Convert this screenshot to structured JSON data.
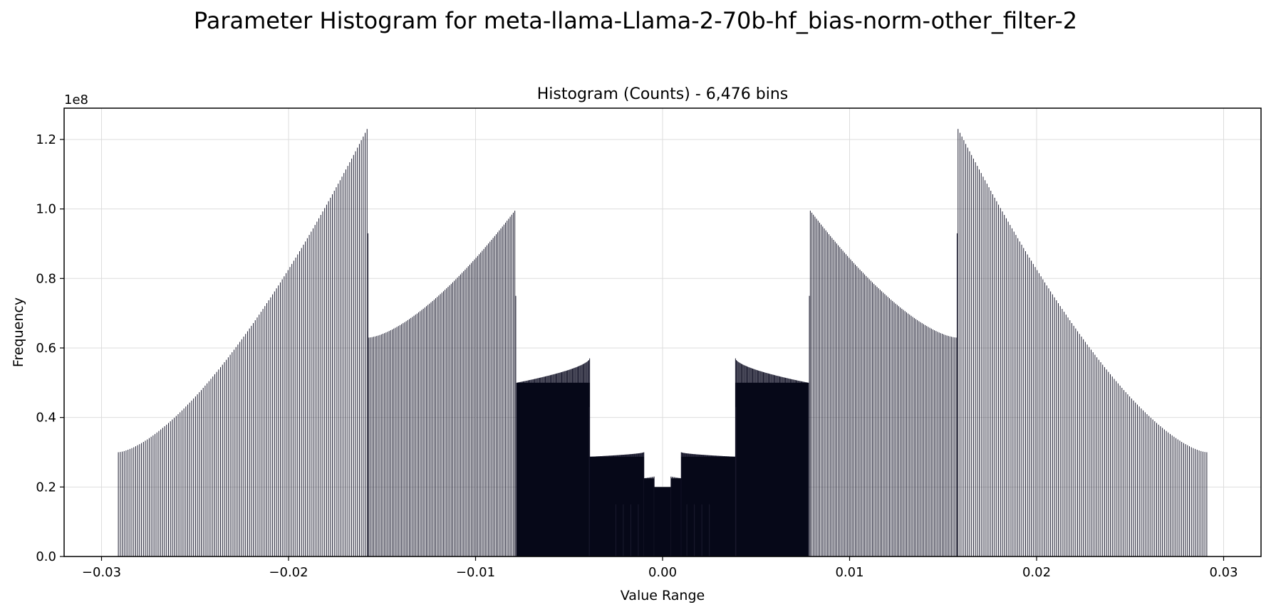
{
  "figure": {
    "suptitle": "Parameter Histogram for meta-llama-Llama-2-70b-hf_bias-norm-other_filter-2"
  },
  "chart_data": {
    "type": "bar",
    "title": "Histogram (Counts) - 6,476 bins",
    "xlabel": "Value Range",
    "ylabel": "Frequency",
    "y_offset_label": "1e8",
    "xlim": [
      -0.032,
      0.032
    ],
    "ylim": [
      0,
      1.29
    ],
    "y_scale_note": "y values are in units of 1e8",
    "grid": true,
    "bar_color": "#1b1b2f",
    "x_ticks": [
      -0.03,
      -0.02,
      -0.01,
      0.0,
      0.01,
      0.02,
      0.03
    ],
    "x_tick_labels": [
      "−0.03",
      "−0.02",
      "−0.01",
      "0.00",
      "0.01",
      "0.02",
      "0.03"
    ],
    "y_ticks": [
      0.0,
      0.2,
      0.4,
      0.6,
      0.8,
      1.0,
      1.2
    ],
    "y_tick_labels": [
      "0.0",
      "0.2",
      "0.4",
      "0.6",
      "0.8",
      "1.0",
      "1.2"
    ],
    "segments": [
      {
        "x_start": -0.0291,
        "x_end": -0.0158,
        "y_start": 0.3,
        "y_end": 1.23,
        "shape": "convex",
        "n_bars": 130
      },
      {
        "x_start": -0.0157,
        "x_end": -0.0079,
        "y_start": 0.63,
        "y_end": 0.995,
        "shape": "convex",
        "n_bars": 95
      },
      {
        "x_start": -0.0078,
        "x_end": -0.0039,
        "y_start": 0.5,
        "y_end": 0.57,
        "shape": "concave",
        "n_bars": 90
      },
      {
        "x_start": -0.0039,
        "x_end": -0.001,
        "y_start": 0.287,
        "y_end": 0.3,
        "shape": "concave",
        "n_bars": 90
      },
      {
        "x_start": -0.001,
        "x_end": -0.00045,
        "y_start": 0.225,
        "y_end": 0.23,
        "shape": "linear",
        "n_bars": 10
      },
      {
        "x_start": -0.00045,
        "x_end": 0.00045,
        "y_start": 0.2,
        "y_end": 0.2,
        "shape": "valley",
        "n_bars": 20
      },
      {
        "x_start": 0.00045,
        "x_end": 0.001,
        "y_start": 0.23,
        "y_end": 0.225,
        "shape": "linear",
        "n_bars": 10
      },
      {
        "x_start": 0.001,
        "x_end": 0.0039,
        "y_start": 0.3,
        "y_end": 0.287,
        "shape": "concave",
        "n_bars": 90
      },
      {
        "x_start": 0.0039,
        "x_end": 0.0078,
        "y_start": 0.57,
        "y_end": 0.5,
        "shape": "concave",
        "n_bars": 90
      },
      {
        "x_start": 0.0079,
        "x_end": 0.0157,
        "y_start": 0.995,
        "y_end": 0.63,
        "shape": "convex",
        "n_bars": 95
      },
      {
        "x_start": 0.0158,
        "x_end": 0.0291,
        "y_start": 1.23,
        "y_end": 0.3,
        "shape": "convex",
        "n_bars": 130
      }
    ],
    "spikes": [
      {
        "x": -0.01575,
        "y": 0.93
      },
      {
        "x": -0.00785,
        "y": 0.75
      },
      {
        "x": -0.00392,
        "y": 0.43
      },
      {
        "x": -0.0025,
        "y": 0.15
      },
      {
        "x": -0.0021,
        "y": 0.15
      },
      {
        "x": -0.0017,
        "y": 0.15
      },
      {
        "x": -0.0013,
        "y": 0.15
      },
      {
        "x": 0.0013,
        "y": 0.15
      },
      {
        "x": 0.0017,
        "y": 0.15
      },
      {
        "x": 0.0021,
        "y": 0.15
      },
      {
        "x": 0.0025,
        "y": 0.15
      },
      {
        "x": 0.00392,
        "y": 0.43
      },
      {
        "x": 0.00785,
        "y": 0.75
      },
      {
        "x": 0.01575,
        "y": 0.93
      }
    ]
  }
}
